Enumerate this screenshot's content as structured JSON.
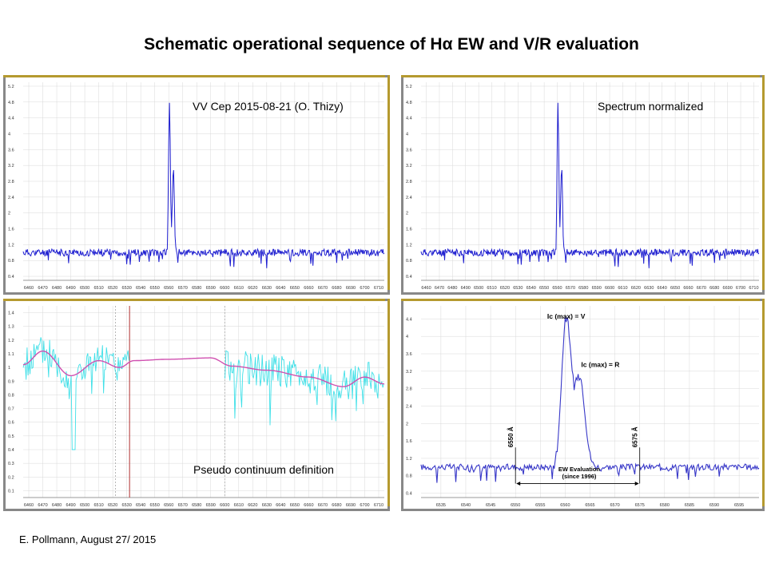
{
  "slide": {
    "title": "Schematic operational sequence of Hα EW and V/R evaluation",
    "footer": "E. Pollmann, August 27/ 2015"
  },
  "colors": {
    "spectrum": "#1f1fd0",
    "raw": "#40e0e8",
    "fit": "#d050b0",
    "marker": "#b03030",
    "grid": "#d8d8d8"
  },
  "chart_data": [
    {
      "type": "line",
      "title": "VV Cep 2015-08-21 (O. Thizy)",
      "xlim": [
        6456,
        6714
      ],
      "ylim": [
        0.3,
        5.3
      ],
      "x_ticks": [
        6460,
        6470,
        6480,
        6490,
        6500,
        6510,
        6520,
        6530,
        6540,
        6550,
        6560,
        6570,
        6580,
        6590,
        6600,
        6610,
        6620,
        6630,
        6640,
        6650,
        6660,
        6670,
        6680,
        6690,
        6700,
        6710
      ],
      "y_ticks": [
        0.4,
        0.8,
        1.2,
        1.6,
        2,
        2.4,
        2.8,
        3.2,
        3.6,
        4,
        4.4,
        4.8,
        5.2
      ],
      "series": [
        {
          "name": "spectrum",
          "peaks": [
            {
              "x": 6560.5,
              "y": 4.85,
              "width": 0.9
            },
            {
              "x": 6563.3,
              "y": 3.15,
              "width": 1.0
            }
          ],
          "continuum": 1.0,
          "noise": 0.09
        }
      ]
    },
    {
      "type": "line",
      "title": "Spectrum normalized",
      "xlim": [
        6456,
        6714
      ],
      "ylim": [
        0.3,
        5.3
      ],
      "x_ticks": [
        6460,
        6470,
        6480,
        6490,
        6500,
        6510,
        6520,
        6530,
        6540,
        6550,
        6560,
        6570,
        6580,
        6590,
        6600,
        6610,
        6620,
        6630,
        6640,
        6650,
        6660,
        6670,
        6680,
        6690,
        6700,
        6710
      ],
      "y_ticks": [
        0.4,
        0.8,
        1.2,
        1.6,
        2,
        2.4,
        2.8,
        3.2,
        3.6,
        4,
        4.4,
        4.8,
        5.2
      ],
      "series": [
        {
          "name": "normalized",
          "peaks": [
            {
              "x": 6560.5,
              "y": 4.85,
              "width": 0.9
            },
            {
              "x": 6563.3,
              "y": 3.15,
              "width": 1.0
            }
          ],
          "continuum": 1.0,
          "noise": 0.09
        }
      ]
    },
    {
      "type": "line",
      "title": "Pseudo continuum definition",
      "xlim": [
        6456,
        6714
      ],
      "ylim": [
        0.05,
        1.45
      ],
      "x_ticks": [
        6460,
        6470,
        6480,
        6490,
        6500,
        6510,
        6520,
        6530,
        6540,
        6550,
        6560,
        6570,
        6580,
        6590,
        6600,
        6610,
        6620,
        6630,
        6640,
        6650,
        6660,
        6670,
        6680,
        6690,
        6700,
        6710
      ],
      "y_ticks": [
        0.1,
        0.2,
        0.3,
        0.4,
        0.5,
        0.6,
        0.7,
        0.8,
        0.9,
        1,
        1.1,
        1.2,
        1.3,
        1.4
      ],
      "markers": [
        6522,
        6532,
        6600
      ],
      "series": [
        {
          "name": "pseudo continuum fit",
          "x": [
            6456,
            6470,
            6490,
            6510,
            6525,
            6535,
            6560,
            6590,
            6605,
            6630,
            6660,
            6685,
            6700,
            6714
          ],
          "y": [
            1.02,
            1.12,
            0.94,
            1.05,
            1.0,
            1.05,
            1.06,
            1.07,
            1.01,
            0.98,
            0.93,
            0.86,
            0.93,
            0.88
          ]
        },
        {
          "name": "raw spectrum",
          "noise": 0.12
        }
      ]
    },
    {
      "type": "line",
      "title": "EW Evaluation (since 1996)",
      "xlim": [
        6531,
        6599
      ],
      "ylim": [
        0.3,
        4.7
      ],
      "x_ticks": [
        6535,
        6540,
        6545,
        6550,
        6555,
        6560,
        6565,
        6570,
        6575,
        6580,
        6585,
        6590,
        6595
      ],
      "y_ticks": [
        0.4,
        0.8,
        1.2,
        1.6,
        2,
        2.4,
        2.8,
        3.2,
        3.6,
        4,
        4.4
      ],
      "series": [
        {
          "name": "H-alpha profile",
          "peaks": [
            {
              "x": 6560.2,
              "y": 4.4,
              "width": 1.3
            },
            {
              "x": 6562.9,
              "y": 3.08,
              "width": 1.5
            }
          ],
          "continuum": 1.0,
          "noise": 0.07
        }
      ],
      "annotations": {
        "v_label": "Ic (max) = V",
        "r_label": "Ic (max) = R",
        "left_bound": "6550 Å",
        "right_bound": "6575 Å",
        "ew_line1": "EW Evaluation",
        "ew_line2": "(since 1996)",
        "left_x": 6550,
        "right_x": 6575
      }
    }
  ]
}
